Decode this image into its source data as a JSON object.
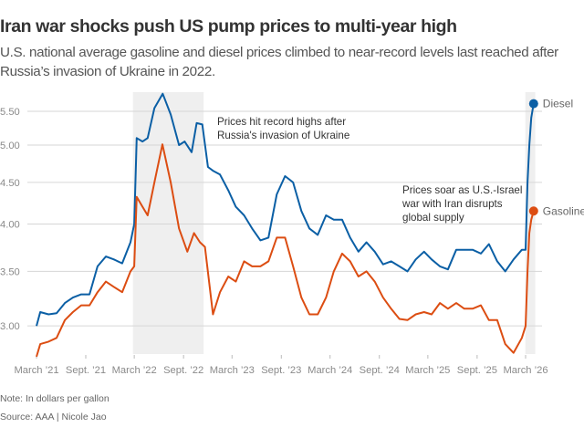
{
  "title": "Iran war shocks push US pump prices to multi-year high",
  "subtitle": "U.S. national average gasoline and diesel prices climbed to near-record levels last reached after Russia’s invasion of Ukraine in 2022.",
  "note": "Note: In dollars per gallon",
  "source": "Source: AAA | Nicole Jao",
  "chart_data": {
    "type": "line",
    "title": "Iran war shocks push US pump prices to multi-year high",
    "xlabel": "",
    "ylabel": "",
    "y_scale": "log",
    "ylim": [
      2.75,
      5.85
    ],
    "xlim": [
      "2021-03-01",
      "2026-03-31"
    ],
    "grid": true,
    "y_ticks": [
      "3.00",
      "3.50",
      "4.00",
      "4.50",
      "5.00",
      "5.50"
    ],
    "x_ticks": [
      {
        "date": "2021-03-01",
        "label": "March ’21"
      },
      {
        "date": "2021-09-01",
        "label": "Sept. ’21"
      },
      {
        "date": "2022-03-01",
        "label": "March ’22"
      },
      {
        "date": "2022-09-01",
        "label": "Sept. ’22"
      },
      {
        "date": "2023-03-01",
        "label": "March ’23"
      },
      {
        "date": "2023-09-01",
        "label": "Sept. ’23"
      },
      {
        "date": "2024-03-01",
        "label": "March ’24"
      },
      {
        "date": "2024-09-01",
        "label": "Sept. ’24"
      },
      {
        "date": "2025-03-01",
        "label": "March ’25"
      },
      {
        "date": "2025-09-01",
        "label": "Sept. ’25"
      },
      {
        "date": "2026-03-01",
        "label": "March ’26"
      }
    ],
    "shaded_periods": [
      {
        "start": "2022-02-24",
        "end": "2022-11-15"
      },
      {
        "start": "2026-02-28",
        "end": "2026-04-06"
      }
    ],
    "annotations": [
      {
        "lines": [
          "Prices hit record highs after",
          "Russia's invasion of Ukraine"
        ]
      },
      {
        "lines": [
          "Prices soar as U.S.-Israel",
          "war with Iran disrupts",
          "global supply"
        ]
      }
    ],
    "series": [
      {
        "name": "Diesel",
        "color": "#0b5fa5",
        "x": [
          "2021-03-01",
          "2021-03-15",
          "2021-04-15",
          "2021-05-15",
          "2021-06-15",
          "2021-07-15",
          "2021-08-15",
          "2021-09-15",
          "2021-10-15",
          "2021-11-15",
          "2021-12-15",
          "2022-01-15",
          "2022-02-15",
          "2022-03-01",
          "2022-03-10",
          "2022-04-01",
          "2022-04-20",
          "2022-05-15",
          "2022-06-15",
          "2022-07-15",
          "2022-08-15",
          "2022-09-05",
          "2022-10-01",
          "2022-10-20",
          "2022-11-10",
          "2022-12-01",
          "2022-12-20",
          "2023-01-15",
          "2023-02-15",
          "2023-03-15",
          "2023-04-15",
          "2023-05-15",
          "2023-06-15",
          "2023-07-15",
          "2023-08-15",
          "2023-09-15",
          "2023-10-15",
          "2023-11-15",
          "2023-12-15",
          "2024-01-15",
          "2024-02-15",
          "2024-03-15",
          "2024-04-15",
          "2024-05-15",
          "2024-06-15",
          "2024-07-15",
          "2024-08-15",
          "2024-09-15",
          "2024-10-15",
          "2024-11-15",
          "2024-12-15",
          "2025-01-15",
          "2025-02-15",
          "2025-03-15",
          "2025-04-15",
          "2025-05-15",
          "2025-06-15",
          "2025-07-15",
          "2025-08-15",
          "2025-09-15",
          "2025-10-15",
          "2025-11-15",
          "2025-12-15",
          "2026-01-15",
          "2026-02-15",
          "2026-03-01",
          "2026-03-08",
          "2026-03-15",
          "2026-03-22",
          "2026-03-31"
        ],
        "y": [
          3.0,
          3.12,
          3.1,
          3.11,
          3.2,
          3.25,
          3.28,
          3.28,
          3.55,
          3.65,
          3.62,
          3.58,
          3.8,
          4.0,
          5.1,
          5.05,
          5.1,
          5.55,
          5.78,
          5.45,
          5.0,
          5.05,
          4.9,
          5.32,
          5.3,
          4.7,
          4.65,
          4.6,
          4.4,
          4.2,
          4.1,
          3.95,
          3.82,
          3.85,
          4.35,
          4.58,
          4.5,
          4.15,
          3.95,
          3.88,
          4.1,
          4.05,
          4.05,
          3.85,
          3.7,
          3.8,
          3.7,
          3.57,
          3.6,
          3.55,
          3.5,
          3.62,
          3.7,
          3.62,
          3.55,
          3.52,
          3.72,
          3.72,
          3.72,
          3.68,
          3.78,
          3.6,
          3.5,
          3.62,
          3.72,
          3.72,
          4.5,
          5.0,
          5.4,
          5.62
        ]
      },
      {
        "name": "Gasoline",
        "color": "#dc4d12",
        "x": [
          "2021-03-01",
          "2021-03-15",
          "2021-04-15",
          "2021-05-15",
          "2021-06-15",
          "2021-07-15",
          "2021-08-15",
          "2021-09-15",
          "2021-10-15",
          "2021-11-15",
          "2021-12-15",
          "2022-01-15",
          "2022-02-15",
          "2022-03-01",
          "2022-03-10",
          "2022-04-01",
          "2022-04-20",
          "2022-05-15",
          "2022-06-14",
          "2022-07-15",
          "2022-08-15",
          "2022-09-15",
          "2022-10-10",
          "2022-11-01",
          "2022-11-20",
          "2022-12-20",
          "2023-01-15",
          "2023-02-15",
          "2023-03-15",
          "2023-04-15",
          "2023-05-15",
          "2023-06-15",
          "2023-07-15",
          "2023-08-15",
          "2023-09-15",
          "2023-10-15",
          "2023-11-15",
          "2023-12-15",
          "2024-01-15",
          "2024-02-15",
          "2024-03-15",
          "2024-04-15",
          "2024-05-15",
          "2024-06-15",
          "2024-07-15",
          "2024-08-15",
          "2024-09-15",
          "2024-10-15",
          "2024-11-15",
          "2024-12-15",
          "2025-01-15",
          "2025-02-15",
          "2025-03-15",
          "2025-04-15",
          "2025-05-15",
          "2025-06-15",
          "2025-07-15",
          "2025-08-15",
          "2025-09-15",
          "2025-10-15",
          "2025-11-15",
          "2025-12-15",
          "2026-01-15",
          "2026-02-15",
          "2026-03-01",
          "2026-03-08",
          "2026-03-15",
          "2026-03-22",
          "2026-03-31"
        ],
        "y": [
          2.75,
          2.85,
          2.87,
          2.9,
          3.05,
          3.12,
          3.18,
          3.18,
          3.3,
          3.4,
          3.35,
          3.3,
          3.5,
          3.55,
          4.32,
          4.2,
          4.1,
          4.5,
          5.01,
          4.5,
          3.95,
          3.7,
          3.9,
          3.8,
          3.75,
          3.1,
          3.3,
          3.45,
          3.4,
          3.6,
          3.55,
          3.55,
          3.6,
          3.85,
          3.85,
          3.55,
          3.25,
          3.1,
          3.1,
          3.25,
          3.5,
          3.68,
          3.6,
          3.45,
          3.5,
          3.4,
          3.25,
          3.15,
          3.06,
          3.05,
          3.1,
          3.12,
          3.1,
          3.2,
          3.15,
          3.2,
          3.15,
          3.15,
          3.18,
          3.05,
          3.05,
          2.85,
          2.78,
          2.9,
          3.0,
          3.5,
          3.9,
          4.05,
          4.15
        ]
      }
    ]
  }
}
